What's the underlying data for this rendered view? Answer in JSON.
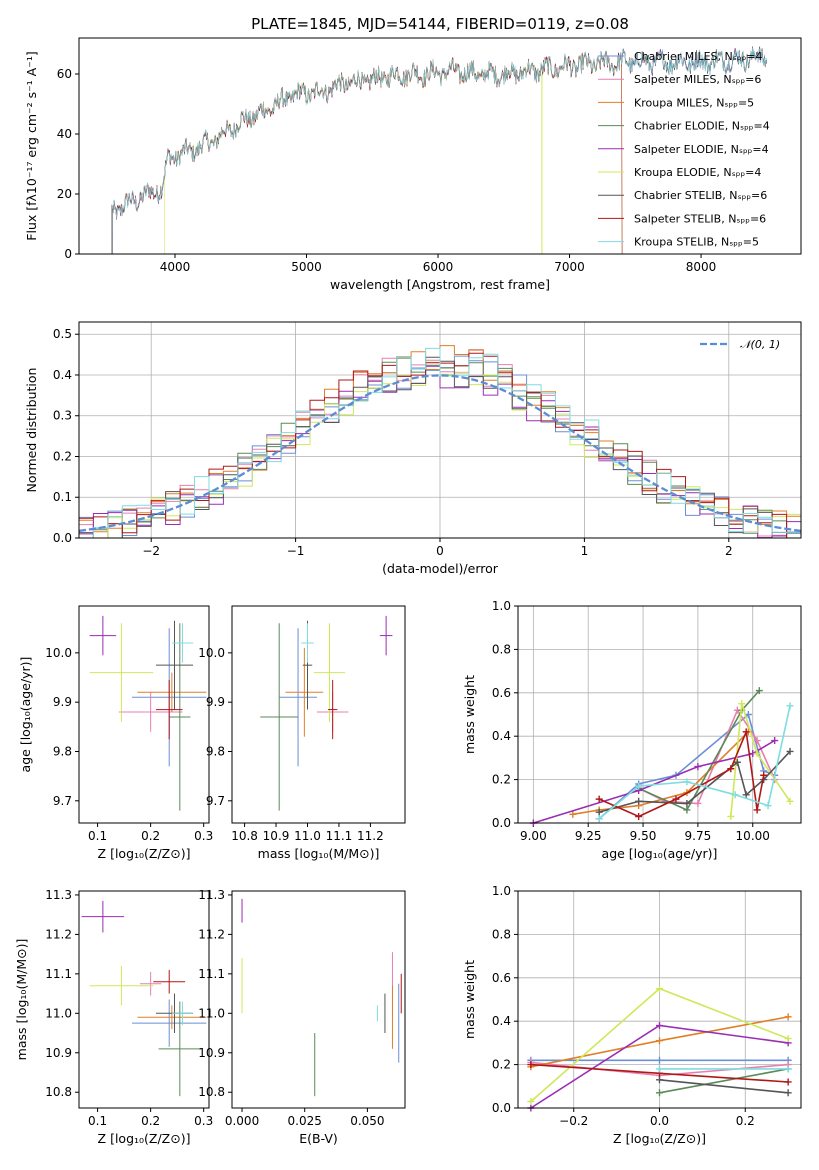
{
  "palette": {
    "chabrier_miles": "#6b8fd6",
    "salpeter_miles": "#e87fb0",
    "kroupa_miles": "#e07f26",
    "chabrier_elodie": "#5a8a5a",
    "salpeter_elodie": "#9a2db3",
    "kroupa_elodie": "#cfe85a",
    "chabrier_stelib": "#555555",
    "salpeter_stelib": "#b01818",
    "kroupa_stelib": "#7fdce0",
    "gauss": "#5b8dd6"
  },
  "chart_data": [
    {
      "id": "spectrum",
      "type": "line",
      "title": "PLATE=1845, MJD=54144, FIBERID=0119, z=0.08",
      "xlabel": "wavelength [Angstrom, rest frame]",
      "ylabel": "Flux [fλ10⁻¹⁷ erg cm⁻² s⁻¹ A⁻¹]",
      "xlim": [
        3270,
        8760
      ],
      "ylim": [
        0,
        72
      ],
      "xticks": [
        "4000",
        "5000",
        "6000",
        "7000",
        "8000"
      ],
      "yticks": [
        "0",
        "20",
        "40",
        "60"
      ],
      "legend_position": "top-right",
      "legend": [
        "Chabrier MILES, Nₛₚₚ=4",
        "Salpeter MILES, Nₛₚₚ=6",
        "Kroupa MILES, Nₛₚₚ=5",
        "Chabrier ELODIE, Nₛₚₚ=4",
        "Salpeter ELODIE, Nₛₚₚ=4",
        "Kroupa ELODIE, Nₛₚₚ=4",
        "Chabrier STELIB, Nₛₚₚ=6",
        "Salpeter STELIB, Nₛₚₚ=6",
        "Kroupa STELIB, Nₛₚₚ=5"
      ],
      "continuum": [
        [
          3520,
          14
        ],
        [
          3650,
          17
        ],
        [
          3800,
          20
        ],
        [
          3900,
          22
        ],
        [
          3950,
          32
        ],
        [
          4100,
          34
        ],
        [
          4300,
          38
        ],
        [
          4500,
          44
        ],
        [
          4700,
          48
        ],
        [
          4900,
          53
        ],
        [
          5100,
          54
        ],
        [
          5300,
          57
        ],
        [
          5500,
          58
        ],
        [
          5700,
          60
        ],
        [
          5900,
          60
        ],
        [
          6100,
          61
        ],
        [
          6300,
          60
        ],
        [
          6500,
          60
        ],
        [
          6700,
          61
        ],
        [
          6900,
          62
        ],
        [
          7100,
          63
        ],
        [
          7400,
          64
        ],
        [
          7700,
          64
        ],
        [
          8000,
          64
        ],
        [
          8300,
          65
        ],
        [
          8500,
          66
        ]
      ],
      "series_start": [
        3520,
        3525,
        3525,
        3520,
        3525,
        3920,
        3520,
        3525,
        3525
      ],
      "series_end": [
        8500,
        8500,
        8500,
        8500,
        8500,
        7400,
        8500,
        7400,
        8500
      ]
    },
    {
      "id": "residuals",
      "type": "histogram",
      "xlabel": "(data-model)/error",
      "ylabel": "Normed distribution",
      "xlim": [
        -2.5,
        2.5
      ],
      "ylim": [
        0,
        0.53
      ],
      "xticks": [
        "−2",
        "−1",
        "0",
        "1",
        "2"
      ],
      "yticks": [
        "0.0",
        "0.1",
        "0.2",
        "0.3",
        "0.4",
        "0.5"
      ],
      "grid": true,
      "legend_position": "top-right",
      "gauss_label": "𝒩(0, 1)",
      "bin_width": 0.1
    },
    {
      "id": "age_vs_Z",
      "type": "errorbar",
      "xlabel": "Z [log₁₀(Z/Z⊙)]",
      "ylabel": "age  [log₁₀(age/yr)]",
      "xlim": [
        0.065,
        0.31
      ],
      "ylim": [
        9.655,
        10.095
      ],
      "xticks": [
        0.1,
        0.2,
        0.3
      ],
      "yticks": [
        9.7,
        9.8,
        9.9,
        10.0
      ],
      "points": [
        {
          "s": 0,
          "x": 0.235,
          "y": 9.91,
          "xe": 0.07,
          "ye": 0.14
        },
        {
          "s": 1,
          "x": 0.2,
          "y": 9.88,
          "xe": 0.06,
          "ye": 0.04
        },
        {
          "s": 2,
          "x": 0.24,
          "y": 9.92,
          "xe": 0.065,
          "ye": 0.04
        },
        {
          "s": 3,
          "x": 0.255,
          "y": 9.87,
          "xe": 0.02,
          "ye": 0.19
        },
        {
          "s": 4,
          "x": 0.11,
          "y": 10.035,
          "xe": 0.025,
          "ye": 0.04
        },
        {
          "s": 5,
          "x": 0.145,
          "y": 9.96,
          "xe": 0.06,
          "ye": 0.1
        },
        {
          "s": 6,
          "x": 0.245,
          "y": 9.975,
          "xe": 0.035,
          "ye": 0.09
        },
        {
          "s": 7,
          "x": 0.235,
          "y": 9.885,
          "xe": 0.025,
          "ye": 0.06
        },
        {
          "s": 8,
          "x": 0.26,
          "y": 10.02,
          "xe": 0.02,
          "ye": 0.04
        }
      ]
    },
    {
      "id": "age_vs_mass",
      "type": "errorbar",
      "xlabel": "mass [log₁₀(M/M⊙)]",
      "ylabel": "",
      "xlim": [
        10.76,
        11.31
      ],
      "ylim": [
        9.655,
        10.095
      ],
      "xticks": [
        10.8,
        10.9,
        11.0,
        11.1,
        11.2
      ],
      "yticks": [
        9.7,
        9.8,
        9.9,
        10.0
      ],
      "points": [
        {
          "s": 0,
          "x": 10.97,
          "y": 9.91,
          "xe": 0.06,
          "ye": 0.14
        },
        {
          "s": 1,
          "x": 11.08,
          "y": 9.88,
          "xe": 0.05,
          "ye": 0.04
        },
        {
          "s": 2,
          "x": 10.99,
          "y": 9.92,
          "xe": 0.06,
          "ye": 0.09
        },
        {
          "s": 3,
          "x": 10.91,
          "y": 9.87,
          "xe": 0.06,
          "ye": 0.19
        },
        {
          "s": 4,
          "x": 11.25,
          "y": 10.035,
          "xe": 0.02,
          "ye": 0.04
        },
        {
          "s": 5,
          "x": 11.07,
          "y": 9.96,
          "xe": 0.05,
          "ye": 0.1
        },
        {
          "s": 6,
          "x": 11.0,
          "y": 9.975,
          "xe": 0.015,
          "ye": 0.09
        },
        {
          "s": 7,
          "x": 11.08,
          "y": 9.885,
          "xe": 0.015,
          "ye": 0.06
        },
        {
          "s": 8,
          "x": 11.0,
          "y": 10.02,
          "xe": 0.02,
          "ye": 0.04
        }
      ]
    },
    {
      "id": "weight_vs_age",
      "type": "line",
      "xlabel": "age  [log₁₀(age/yr)]",
      "ylabel": "mass weight",
      "xlim": [
        8.93,
        10.22
      ],
      "ylim": [
        0,
        1
      ],
      "xticks": [
        "9.00",
        "9.25",
        "9.50",
        "9.75",
        "10.00"
      ],
      "xtick_values": [
        9.0,
        9.25,
        9.5,
        9.75,
        10.0
      ],
      "yticks": [
        "0.0",
        "0.2",
        "0.4",
        "0.6",
        "0.8",
        "1.0"
      ],
      "grid": true,
      "series": [
        {
          "s": 0,
          "points": [
            [
              9.3,
              0.02
            ],
            [
              9.48,
              0.18
            ],
            [
              9.65,
              0.22
            ],
            [
              9.98,
              0.5
            ],
            [
              10.05,
              0.24
            ],
            [
              10.1,
              0.22
            ]
          ]
        },
        {
          "s": 1,
          "points": [
            [
              9.48,
              0.16
            ],
            [
              9.6,
              0.1
            ],
            [
              9.75,
              0.09
            ],
            [
              9.93,
              0.52
            ],
            [
              10.02,
              0.38
            ],
            [
              10.1,
              0.2
            ]
          ]
        },
        {
          "s": 2,
          "points": [
            [
              9.18,
              0.04
            ],
            [
              9.3,
              0.06
            ],
            [
              9.48,
              0.08
            ],
            [
              9.7,
              0.14
            ],
            [
              9.98,
              0.42
            ]
          ]
        },
        {
          "s": 3,
          "points": [
            [
              9.48,
              0.16
            ],
            [
              9.7,
              0.06
            ],
            [
              9.95,
              0.52
            ],
            [
              10.03,
              0.61
            ]
          ]
        },
        {
          "s": 4,
          "points": [
            [
              9.0,
              0.0
            ],
            [
              9.48,
              0.15
            ],
            [
              9.75,
              0.26
            ],
            [
              10.0,
              0.32
            ],
            [
              10.1,
              0.38
            ]
          ]
        },
        {
          "s": 5,
          "points": [
            [
              9.9,
              0.03
            ],
            [
              9.95,
              0.55
            ],
            [
              10.02,
              0.32
            ],
            [
              10.17,
              0.1
            ]
          ]
        },
        {
          "s": 6,
          "points": [
            [
              9.3,
              0.05
            ],
            [
              9.48,
              0.1
            ],
            [
              9.7,
              0.09
            ],
            [
              9.93,
              0.28
            ],
            [
              9.97,
              0.13
            ],
            [
              10.05,
              0.2
            ],
            [
              10.17,
              0.33
            ]
          ]
        },
        {
          "s": 7,
          "points": [
            [
              9.3,
              0.11
            ],
            [
              9.48,
              0.03
            ],
            [
              9.65,
              0.11
            ],
            [
              9.9,
              0.25
            ],
            [
              9.97,
              0.42
            ],
            [
              10.02,
              0.06
            ],
            [
              10.05,
              0.22
            ]
          ]
        },
        {
          "s": 8,
          "points": [
            [
              9.3,
              0.02
            ],
            [
              9.48,
              0.17
            ],
            [
              9.7,
              0.19
            ],
            [
              9.92,
              0.13
            ],
            [
              10.07,
              0.08
            ],
            [
              10.17,
              0.54
            ]
          ]
        }
      ]
    },
    {
      "id": "mass_vs_Z",
      "type": "errorbar",
      "xlabel": "Z [log₁₀(Z/Z⊙)]",
      "ylabel": "mass [log₁₀(M/M⊙)]",
      "xlim": [
        0.065,
        0.31
      ],
      "ylim": [
        10.76,
        11.31
      ],
      "xticks": [
        0.1,
        0.2,
        0.3
      ],
      "yticks": [
        10.8,
        10.9,
        11.0,
        11.1,
        11.2,
        11.3
      ],
      "points": [
        {
          "s": 0,
          "x": 0.235,
          "y": 10.975,
          "xe": 0.07,
          "ye": 0.06
        },
        {
          "s": 1,
          "x": 0.2,
          "y": 11.075,
          "xe": 0.02,
          "ye": 0.03
        },
        {
          "s": 2,
          "x": 0.24,
          "y": 10.99,
          "xe": 0.065,
          "ye": 0.03
        },
        {
          "s": 3,
          "x": 0.255,
          "y": 10.91,
          "xe": 0.04,
          "ye": 0.12
        },
        {
          "s": 4,
          "x": 0.11,
          "y": 11.245,
          "xe": 0.04,
          "ye": 0.04
        },
        {
          "s": 5,
          "x": 0.145,
          "y": 11.07,
          "xe": 0.06,
          "ye": 0.05
        },
        {
          "s": 6,
          "x": 0.245,
          "y": 11.0,
          "xe": 0.035,
          "ye": 0.05
        },
        {
          "s": 7,
          "x": 0.235,
          "y": 11.08,
          "xe": 0.03,
          "ye": 0.03
        },
        {
          "s": 8,
          "x": 0.26,
          "y": 11.0,
          "xe": 0.02,
          "ye": 0.03
        }
      ]
    },
    {
      "id": "mass_vs_ebv",
      "type": "errorbar",
      "xlabel": "E(B-V)",
      "ylabel": "",
      "xlim": [
        -0.004,
        0.065
      ],
      "ylim": [
        10.76,
        11.31
      ],
      "xticks": [
        0.0,
        0.025,
        0.05
      ],
      "tick_labels": [
        "0.000",
        "0.025",
        "0.050"
      ],
      "yticks": [
        10.8,
        10.9,
        11.0,
        11.1,
        11.2,
        11.3
      ],
      "points": [
        {
          "s": 0,
          "x": 0.0625,
          "y": 10.975,
          "xe": 0,
          "ye": 0.1
        },
        {
          "s": 1,
          "x": 0.06,
          "y": 11.075,
          "xe": 0,
          "ye": 0.08
        },
        {
          "s": 2,
          "x": 0.06,
          "y": 10.99,
          "xe": 0,
          "ye": 0.08
        },
        {
          "s": 3,
          "x": 0.029,
          "y": 10.87,
          "xe": 0,
          "ye": 0.08
        },
        {
          "s": 4,
          "x": 0.0,
          "y": 11.26,
          "xe": 0,
          "ye": 0.03
        },
        {
          "s": 5,
          "x": 0.0,
          "y": 11.07,
          "xe": 0,
          "ye": 0.07
        },
        {
          "s": 6,
          "x": 0.057,
          "y": 11.0,
          "xe": 0,
          "ye": 0.05
        },
        {
          "s": 7,
          "x": 0.0635,
          "y": 11.05,
          "xe": 0,
          "ye": 0.05
        },
        {
          "s": 8,
          "x": 0.054,
          "y": 11.0,
          "xe": 0,
          "ye": 0.02
        }
      ]
    },
    {
      "id": "weight_vs_Z",
      "type": "line",
      "xlabel": "Z [log₁₀(Z/Z⊙)]",
      "ylabel": "mass weight",
      "xlim": [
        -0.33,
        0.33
      ],
      "ylim": [
        0,
        1
      ],
      "xticks": [
        "−0.2",
        "0.0",
        "0.2"
      ],
      "xtick_values": [
        -0.2,
        0.0,
        0.2
      ],
      "yticks": [
        "0.0",
        "0.2",
        "0.4",
        "0.6",
        "0.8",
        "1.0"
      ],
      "grid": true,
      "series": [
        {
          "s": 0,
          "points": [
            [
              -0.3,
              0.22
            ],
            [
              0.0,
              0.22
            ],
            [
              0.3,
              0.22
            ]
          ]
        },
        {
          "s": 1,
          "points": [
            [
              -0.3,
              0.21
            ],
            [
              0.0,
              0.15
            ],
            [
              0.3,
              0.2
            ]
          ]
        },
        {
          "s": 2,
          "points": [
            [
              -0.3,
              0.19
            ],
            [
              0.0,
              0.31
            ],
            [
              0.3,
              0.42
            ]
          ]
        },
        {
          "s": 3,
          "points": [
            [
              0.0,
              0.07
            ],
            [
              0.3,
              0.18
            ]
          ]
        },
        {
          "s": 4,
          "points": [
            [
              -0.3,
              0.0
            ],
            [
              0.0,
              0.38
            ],
            [
              0.3,
              0.3
            ]
          ]
        },
        {
          "s": 5,
          "points": [
            [
              -0.3,
              0.03
            ],
            [
              0.0,
              0.55
            ],
            [
              0.3,
              0.32
            ]
          ]
        },
        {
          "s": 6,
          "points": [
            [
              0.0,
              0.13
            ],
            [
              0.3,
              0.07
            ]
          ]
        },
        {
          "s": 7,
          "points": [
            [
              -0.3,
              0.2
            ],
            [
              0.0,
              0.16
            ],
            [
              0.3,
              0.12
            ]
          ]
        },
        {
          "s": 8,
          "points": [
            [
              0.0,
              0.18
            ],
            [
              0.3,
              0.18
            ]
          ]
        }
      ]
    }
  ]
}
